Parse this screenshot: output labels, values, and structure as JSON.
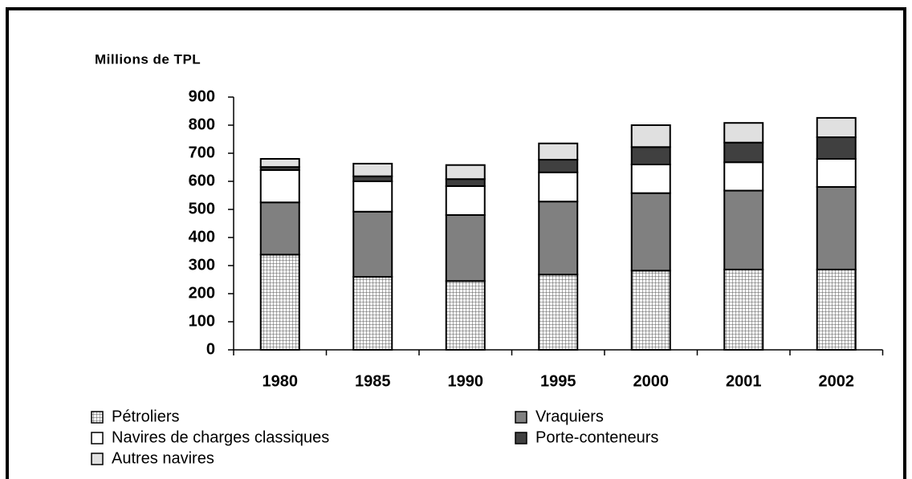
{
  "chart_data": {
    "type": "stacked_bar",
    "y_label": "Millions de TPL",
    "categories": [
      "1980",
      "1985",
      "1990",
      "1995",
      "2000",
      "2001",
      "2002"
    ],
    "series": [
      {
        "name": "Pétroliers",
        "color": "#ffffff",
        "pattern": "grid",
        "values": [
          339,
          260,
          245,
          268,
          282,
          286,
          286
        ]
      },
      {
        "name": "Vraquiers",
        "color": "#808080",
        "values": [
          186,
          232,
          235,
          260,
          276,
          281,
          294
        ]
      },
      {
        "name": "Navires de charges classiques",
        "color": "#ffffff",
        "values": [
          115,
          108,
          103,
          104,
          102,
          101,
          100
        ]
      },
      {
        "name": "Porte-conteneurs",
        "color": "#404040",
        "values": [
          11,
          18,
          25,
          45,
          62,
          70,
          77
        ]
      },
      {
        "name": "Autres navires",
        "color": "#e0e0e0",
        "values": [
          29,
          45,
          50,
          58,
          78,
          70,
          69
        ]
      }
    ],
    "ylim": [
      0,
      900
    ],
    "yticks": [
      0,
      100,
      200,
      300,
      400,
      500,
      600,
      700,
      800,
      900
    ]
  }
}
